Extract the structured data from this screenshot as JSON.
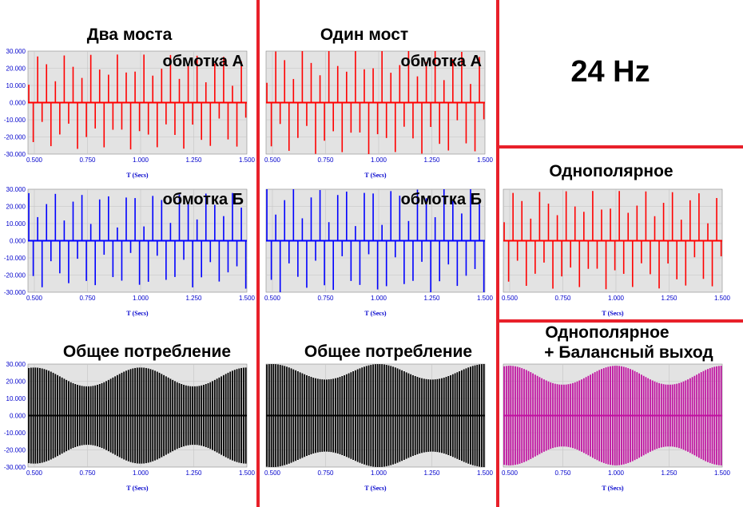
{
  "headings": {
    "dva_mosta": "Два моста",
    "odin_most": "Один мост",
    "freq": "24 Hz",
    "obshchee_1": "Общее потребление",
    "obshchee_2": "Общее потребление",
    "odnopolyarnoe": "Однополярное",
    "odnopolyarnoe_bal_1": "Однополярное",
    "odnopolyarnoe_bal_2": "+ Балансный выход"
  },
  "colors": {
    "divider": "#e8202a",
    "plot_bg": "#e3e3e3",
    "red_signal": "#ff0000",
    "blue_signal": "#0000ff",
    "black_signal": "#000000",
    "magenta_signal": "#c010a0",
    "tick_text": "#0000cc"
  },
  "chart_data": [
    {
      "id": "two-bridges-winding-a",
      "type": "line",
      "title": "обмотка А",
      "xlabel": "T (Secs)",
      "ylabel": "",
      "xlim": [
        0.47,
        1.5
      ],
      "ylim": [
        -30,
        30
      ],
      "xticks": [
        "0.500",
        "0.750",
        "1.000",
        "1.250",
        "1.500"
      ],
      "yticks": [
        "30.000",
        "20.000",
        "10.000",
        "0.000",
        "-10.000",
        "-20.000",
        "-30.000"
      ],
      "color": "#ff0000",
      "signal": "bipolar-stripe",
      "amplitude": 28,
      "envelope_period_s": 0.5,
      "pulse_rate_hz": 48,
      "grid": true
    },
    {
      "id": "one-bridge-winding-a",
      "type": "line",
      "title": "обмотка А",
      "xlabel": "T (Secs)",
      "ylabel": "",
      "xlim": [
        0.47,
        1.5
      ],
      "ylim": [
        -30,
        30
      ],
      "xticks": [
        "0.500",
        "0.750",
        "1.000",
        "1.250",
        "1.500"
      ],
      "yticks": [],
      "color": "#ff0000",
      "signal": "bipolar-stripe",
      "amplitude": 31,
      "envelope_period_s": 0.5,
      "pulse_rate_hz": 48,
      "grid": true
    },
    {
      "id": "two-bridges-winding-b",
      "type": "line",
      "title": "обмотка Б",
      "xlabel": "T (Secs)",
      "ylabel": "",
      "xlim": [
        0.47,
        1.5
      ],
      "ylim": [
        -30,
        30
      ],
      "xticks": [
        "0.500",
        "0.750",
        "1.000",
        "1.250",
        "1.500"
      ],
      "yticks": [
        "30.000",
        "20.000",
        "10.000",
        "0.000",
        "-10.000",
        "-20.000",
        "-30.000"
      ],
      "color": "#0000ff",
      "signal": "bipolar-stripe",
      "amplitude": 28,
      "envelope_period_s": 0.5,
      "phase_shift_s": 0.25,
      "pulse_rate_hz": 48,
      "grid": true
    },
    {
      "id": "one-bridge-winding-b",
      "type": "line",
      "title": "обмотка Б",
      "xlabel": "T (Secs)",
      "ylabel": "",
      "xlim": [
        0.47,
        1.5
      ],
      "ylim": [
        -30,
        30
      ],
      "xticks": [
        "0.500",
        "0.750",
        "1.000",
        "1.250",
        "1.500"
      ],
      "yticks": [],
      "color": "#0000ff",
      "signal": "bipolar-stripe",
      "amplitude": 31,
      "envelope_period_s": 0.5,
      "phase_shift_s": 0.25,
      "pulse_rate_hz": 48,
      "grid": true
    },
    {
      "id": "two-bridges-total",
      "type": "line",
      "title": "",
      "xlabel": "T (Secs)",
      "ylabel": "",
      "xlim": [
        0.47,
        1.5
      ],
      "ylim": [
        -30,
        30
      ],
      "xticks": [
        "0.500",
        "0.750",
        "1.000",
        "1.250",
        "1.500"
      ],
      "yticks": [
        "30.000",
        "20.000",
        "10.000",
        "0.000",
        "-10.000",
        "-20.000",
        "-30.000"
      ],
      "color": "#000000",
      "signal": "dense-envelope",
      "amplitude_max": 28,
      "amplitude_min": 17,
      "envelope_period_s": 0.5,
      "pulse_rate_hz": 96,
      "grid": true
    },
    {
      "id": "one-bridge-total",
      "type": "line",
      "title": "",
      "xlabel": "T (Secs)",
      "ylabel": "",
      "xlim": [
        0.47,
        1.5
      ],
      "ylim": [
        -30,
        30
      ],
      "xticks": [
        "0.500",
        "0.750",
        "1.000",
        "1.250",
        "1.500"
      ],
      "yticks": [],
      "color": "#000000",
      "signal": "dense-envelope",
      "amplitude_max": 30,
      "amplitude_min": 21,
      "envelope_period_s": 0.5,
      "pulse_rate_hz": 96,
      "grid": true
    },
    {
      "id": "unipolar",
      "type": "line",
      "title": "",
      "xlabel": "T (Secs)",
      "ylabel": "",
      "xlim": [
        0.47,
        1.5
      ],
      "ylim": [
        -30,
        30
      ],
      "xticks": [
        "0.500",
        "0.750",
        "1.000",
        "1.250",
        "1.500"
      ],
      "yticks": [],
      "color": "#ff0000",
      "signal": "bipolar-stripe",
      "amplitude": 29,
      "envelope_period_s": 0.5,
      "pulse_rate_hz": 48,
      "grid": true
    },
    {
      "id": "unipolar-balanced",
      "type": "line",
      "title": "",
      "xlabel": "T (Secs)",
      "ylabel": "",
      "xlim": [
        0.47,
        1.5
      ],
      "ylim": [
        -30,
        30
      ],
      "xticks": [
        "0.500",
        "0.750",
        "1.000",
        "1.250",
        "1.500"
      ],
      "yticks": [],
      "color": "#c010a0",
      "signal": "dense-envelope",
      "amplitude_max": 29,
      "amplitude_min": 18,
      "envelope_period_s": 0.5,
      "pulse_rate_hz": 96,
      "grid": true
    }
  ]
}
